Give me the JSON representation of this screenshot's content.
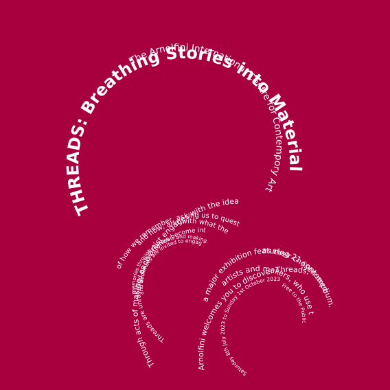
{
  "title": "THREADS: Breathing Stories into Materials",
  "subtitle": "The Arnolfini International Centre for Contempory Arts",
  "intro_lines": [
    "Through acts of making, each artist engages with the idea",
    "of how we remember, asking us to question where,",
    "and how, and with what the work has been created.",
    "Threads are unravelled as new stories become intertwined,",
    "and audiences are invited to engage with their own",
    "memories through materials and making."
  ],
  "info_lines": [
    "Arnolfini welcomes you to discover Threads,",
    "a major exhibition featuring 21 contemporary",
    "artists and makers, who use textiles",
    "as their chosen medium."
  ],
  "dates": "Saturday 8th July 2023 to Sunday 1st October 2023",
  "admission": "Free to the Public",
  "colors": {
    "background": "#a8003f",
    "text": "#ffffff"
  }
}
